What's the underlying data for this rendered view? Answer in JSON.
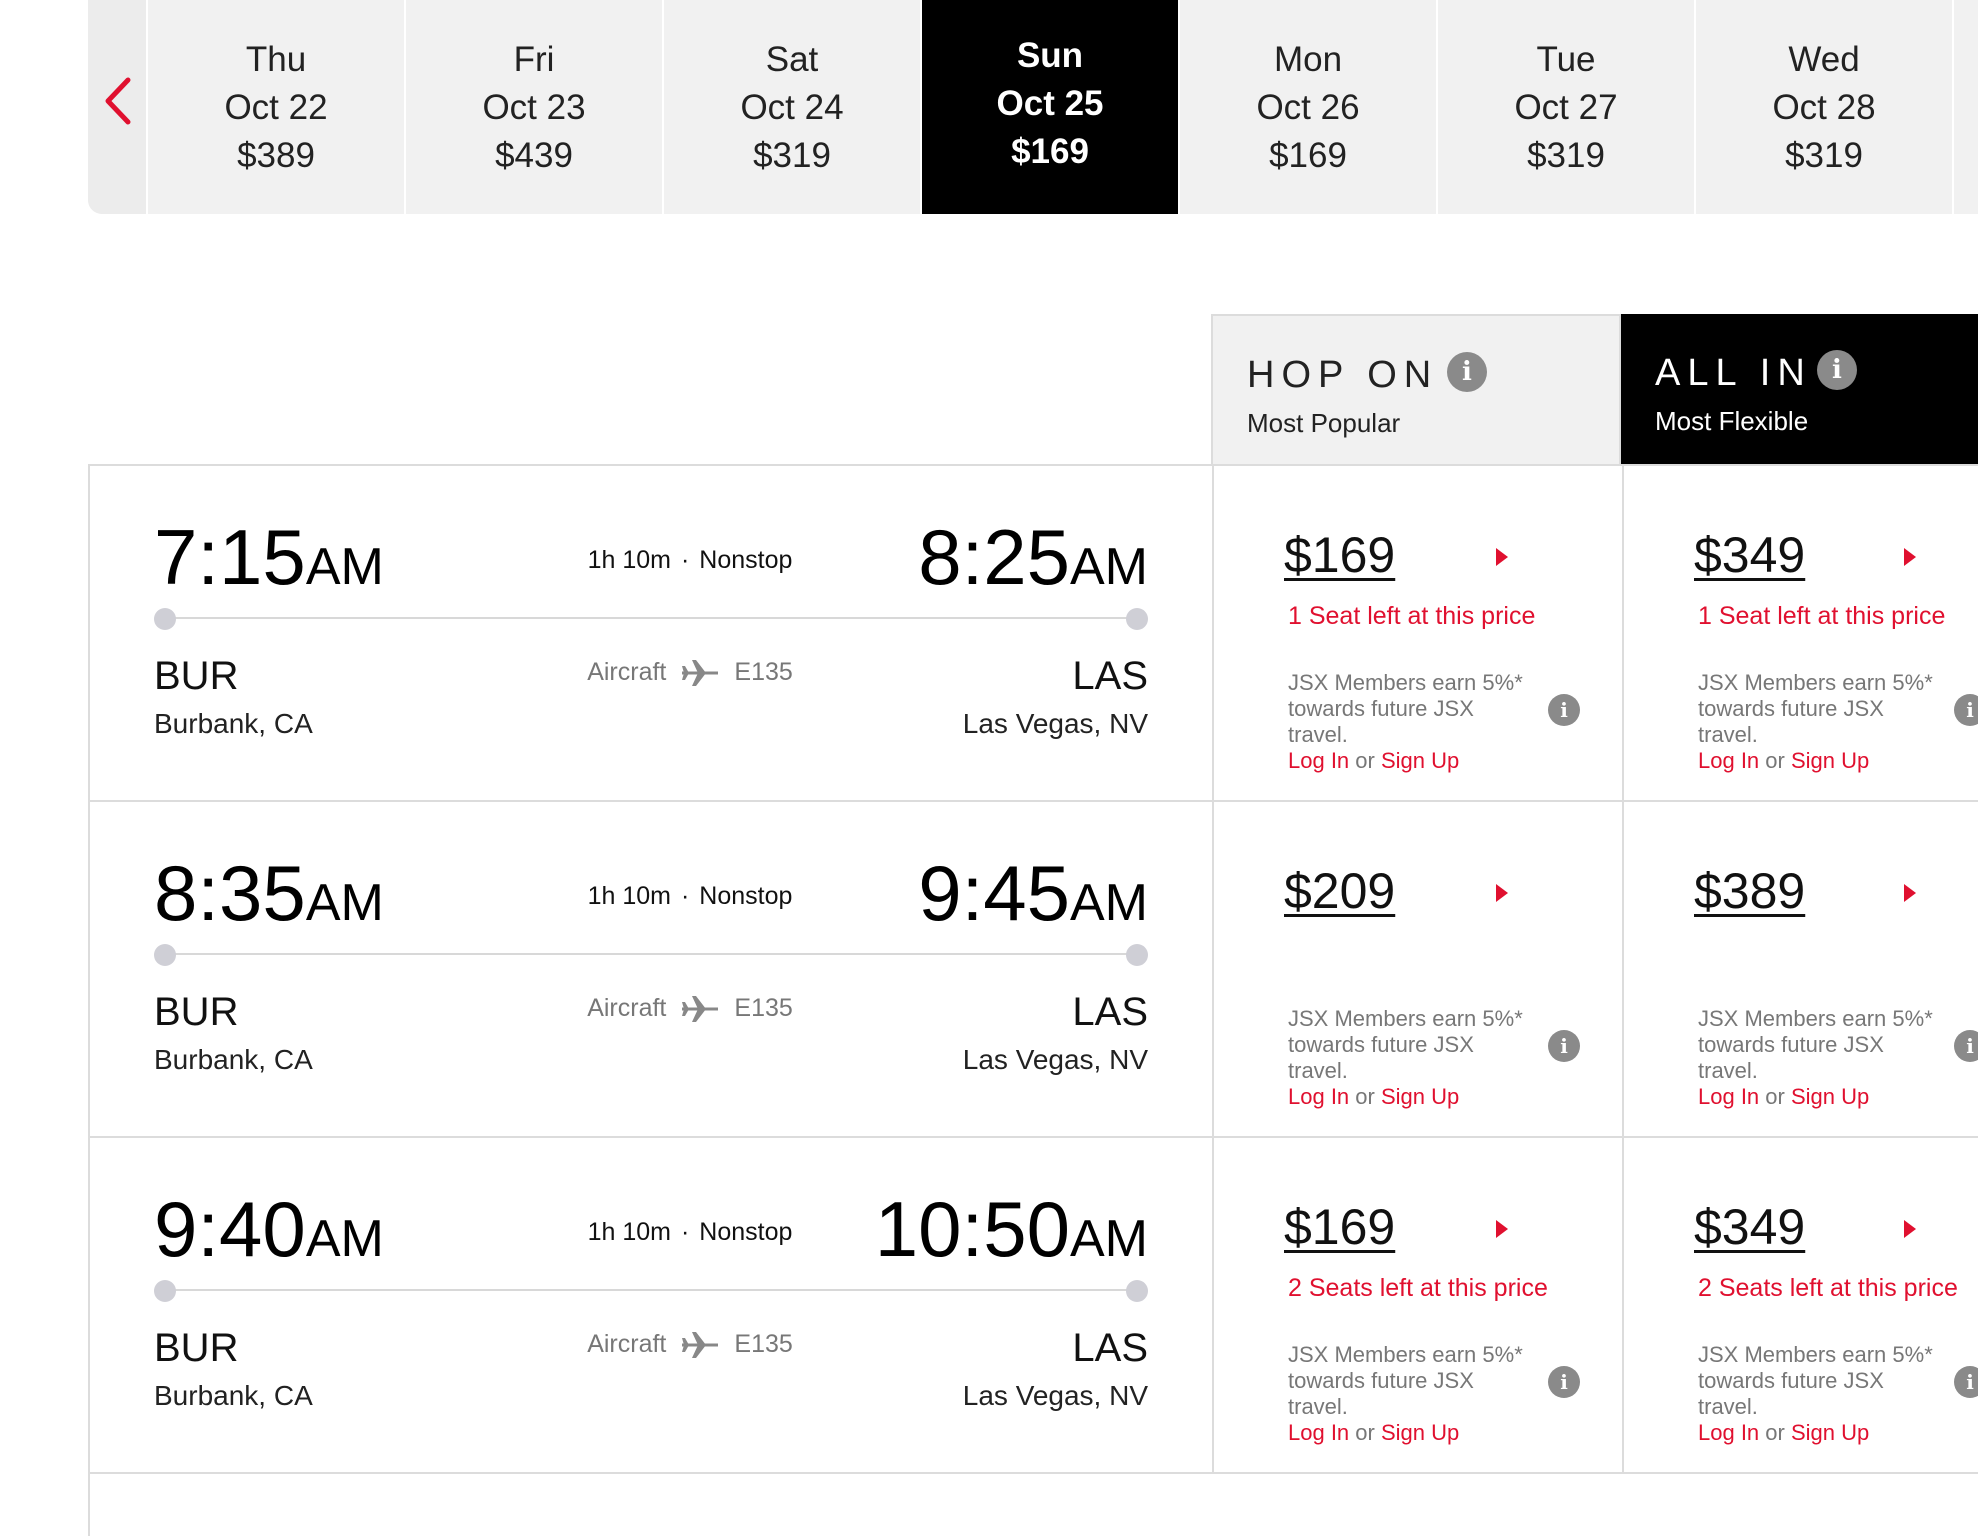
{
  "date_strip": {
    "prev_icon": "chevron-left-icon",
    "accent_color": "#e0102f",
    "days": [
      {
        "day": "Thu",
        "date": "Oct 22",
        "price": "$389",
        "selected": false
      },
      {
        "day": "Fri",
        "date": "Oct 23",
        "price": "$439",
        "selected": false
      },
      {
        "day": "Sat",
        "date": "Oct 24",
        "price": "$319",
        "selected": false
      },
      {
        "day": "Sun",
        "date": "Oct 25",
        "price": "$169",
        "selected": true
      },
      {
        "day": "Mon",
        "date": "Oct 26",
        "price": "$169",
        "selected": false
      },
      {
        "day": "Tue",
        "date": "Oct 27",
        "price": "$319",
        "selected": false
      },
      {
        "day": "Wed",
        "date": "Oct 28",
        "price": "$319",
        "selected": false
      }
    ]
  },
  "fares": {
    "hop_on": {
      "title": "HOP ON",
      "subtitle": "Most Popular",
      "info_icon": "info-icon"
    },
    "all_in": {
      "title": "ALL IN",
      "subtitle": "Most Flexible",
      "info_icon": "info-icon"
    }
  },
  "flights": [
    {
      "dep_time": "7:15",
      "dep_ampm": "AM",
      "arr_time": "8:25",
      "arr_ampm": "AM",
      "duration": "1h 10m",
      "stops": "Nonstop",
      "dep_code": "BUR",
      "dep_city": "Burbank, CA",
      "arr_code": "LAS",
      "arr_city": "Las Vegas, NV",
      "aircraft_label": "Aircraft",
      "aircraft_type": "E135",
      "hop_on": {
        "price": "$169",
        "seats": "1 Seat left at this price"
      },
      "all_in": {
        "price": "$349",
        "seats": "1 Seat left at this price"
      }
    },
    {
      "dep_time": "8:35",
      "dep_ampm": "AM",
      "arr_time": "9:45",
      "arr_ampm": "AM",
      "duration": "1h 10m",
      "stops": "Nonstop",
      "dep_code": "BUR",
      "dep_city": "Burbank, CA",
      "arr_code": "LAS",
      "arr_city": "Las Vegas, NV",
      "aircraft_label": "Aircraft",
      "aircraft_type": "E135",
      "hop_on": {
        "price": "$209",
        "seats": ""
      },
      "all_in": {
        "price": "$389",
        "seats": ""
      }
    },
    {
      "dep_time": "9:40",
      "dep_ampm": "AM",
      "arr_time": "10:50",
      "arr_ampm": "AM",
      "duration": "1h 10m",
      "stops": "Nonstop",
      "dep_code": "BUR",
      "dep_city": "Burbank, CA",
      "arr_code": "LAS",
      "arr_city": "Las Vegas, NV",
      "aircraft_label": "Aircraft",
      "aircraft_type": "E135",
      "hop_on": {
        "price": "$169",
        "seats": "2 Seats left at this price"
      },
      "all_in": {
        "price": "$349",
        "seats": "2 Seats left at this price"
      }
    }
  ],
  "member_note": {
    "text": "JSX Members earn 5%* towards future JSX travel.",
    "login": "Log In",
    "or": "or",
    "signup": "Sign Up"
  }
}
